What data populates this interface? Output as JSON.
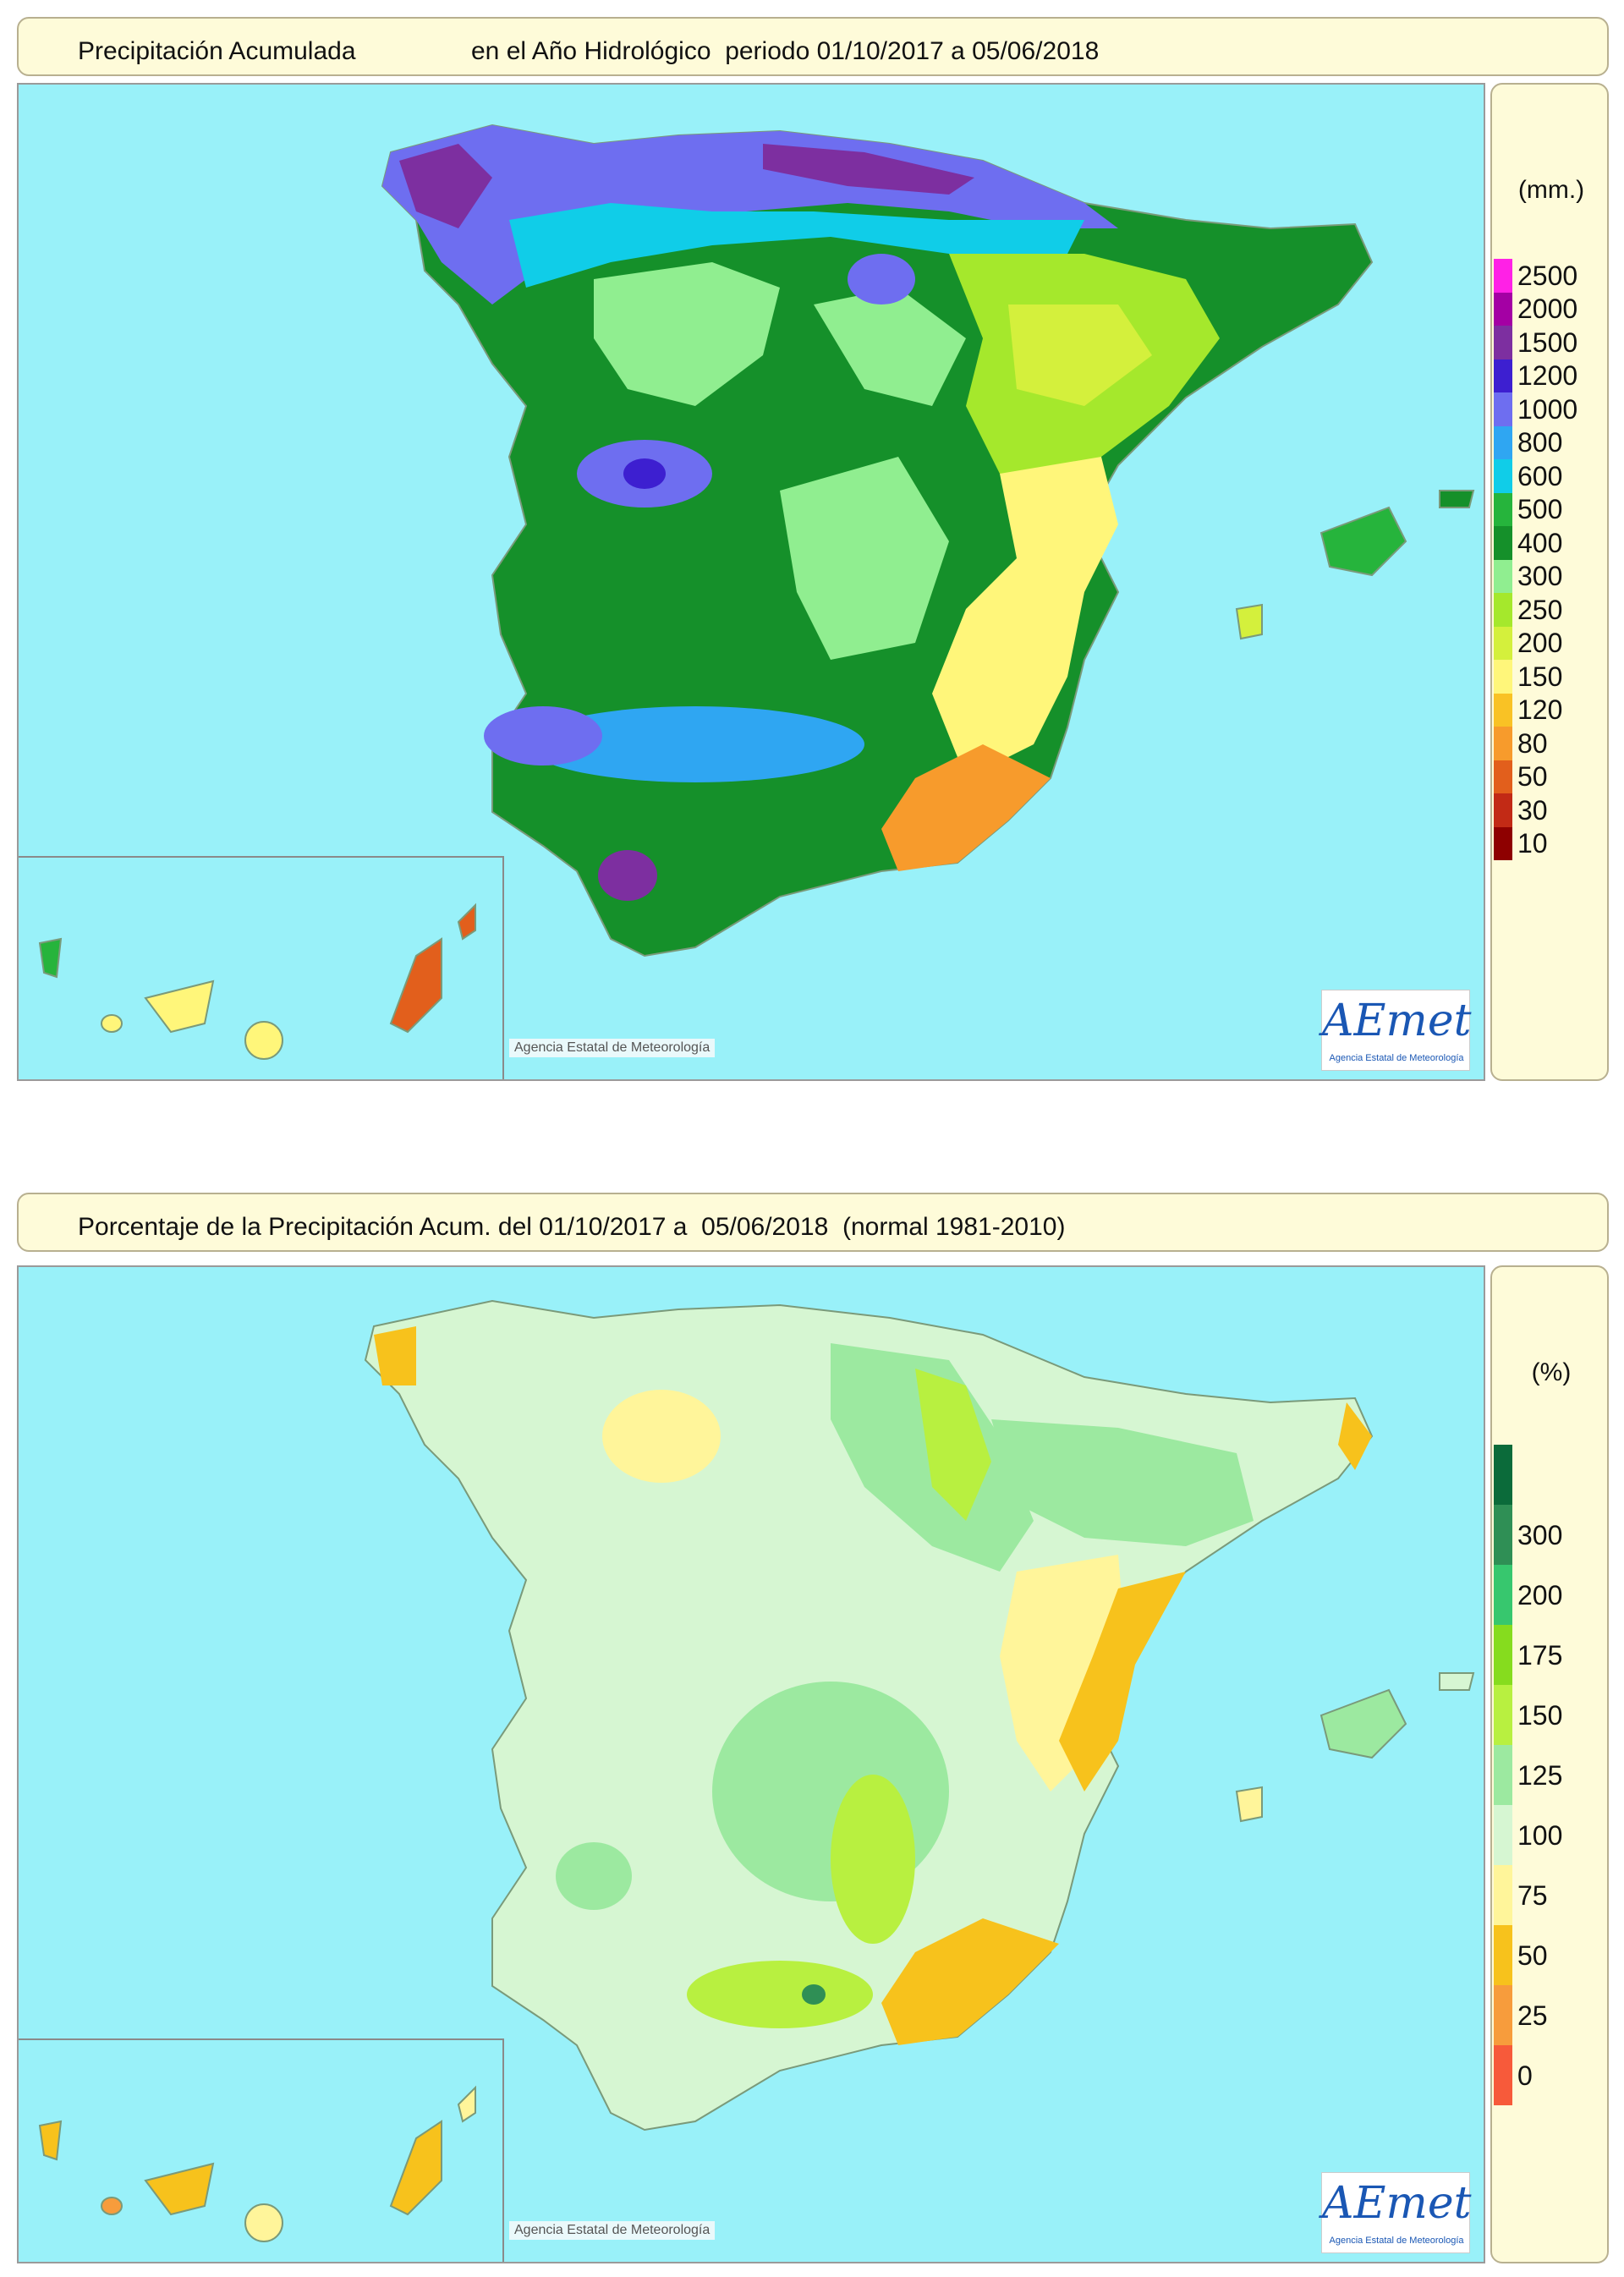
{
  "maps": [
    {
      "title_left": "Precipitación Acumulada",
      "title_right": "en el Año Hidrológico  periodo 01/10/2017 a 05/06/2018",
      "unit": "(mm.)",
      "legend": [
        {
          "label": "2500",
          "color": "#ff21e6"
        },
        {
          "label": "2000",
          "color": "#a400a4"
        },
        {
          "label": "1500",
          "color": "#7d2fa0"
        },
        {
          "label": "1200",
          "color": "#3d1fd0"
        },
        {
          "label": "1000",
          "color": "#6e6ef0"
        },
        {
          "label": "800",
          "color": "#2fa6f2"
        },
        {
          "label": "600",
          "color": "#10cde8"
        },
        {
          "label": "500",
          "color": "#26b43c"
        },
        {
          "label": "400",
          "color": "#15902a"
        },
        {
          "label": "300",
          "color": "#90ee90"
        },
        {
          "label": "250",
          "color": "#a5e82c"
        },
        {
          "label": "200",
          "color": "#d4f03c"
        },
        {
          "label": "150",
          "color": "#fff67a"
        },
        {
          "label": "120",
          "color": "#f9c225"
        },
        {
          "label": "80",
          "color": "#f79b2c"
        },
        {
          "label": "50",
          "color": "#e25f1c"
        },
        {
          "label": "30",
          "color": "#c22a15"
        },
        {
          "label": "10",
          "color": "#8e0000"
        }
      ],
      "copyright": "Agencia Estatal de Meteorología",
      "logo": "AEmet",
      "logo_sub": "Agencia Estatal de Meteorología"
    },
    {
      "title_left": "Porcentaje de la Precipitación Acum. del 01/10/2017 a  05/06/2018  (normal 1981-2010)",
      "title_right": "",
      "unit": "(%)",
      "legend": [
        {
          "label": "",
          "color": "#0b6b3a"
        },
        {
          "label": "300",
          "color": "#2f8f55"
        },
        {
          "label": "200",
          "color": "#37c76e"
        },
        {
          "label": "175",
          "color": "#86dc1e"
        },
        {
          "label": "150",
          "color": "#b8f040"
        },
        {
          "label": "125",
          "color": "#9ce9a0"
        },
        {
          "label": "100",
          "color": "#d6f6d2"
        },
        {
          "label": "75",
          "color": "#fff59a"
        },
        {
          "label": "50",
          "color": "#f7c21c"
        },
        {
          "label": "25",
          "color": "#f79c3c"
        },
        {
          "label": "0",
          "color": "#f75a3a"
        }
      ],
      "copyright": "Agencia Estatal de Meteorología",
      "logo": "AEmet",
      "logo_sub": "Agencia Estatal de Meteorología"
    }
  ]
}
